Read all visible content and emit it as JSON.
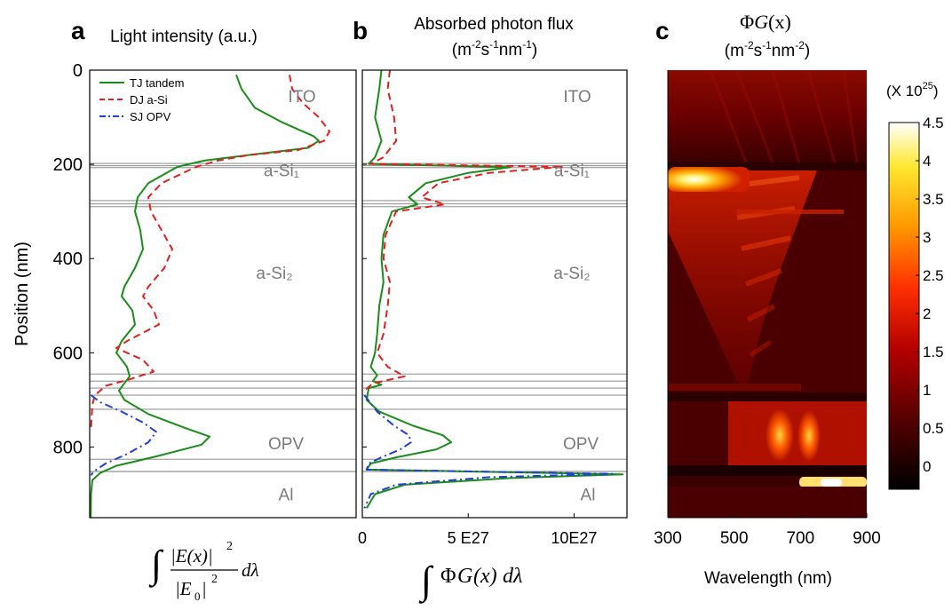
{
  "chart_data": [
    {
      "panel_letter": "a",
      "type": "line",
      "title": "Light intensity (a.u.)",
      "ylabel": "Position (nm)",
      "xlabel_formula": {
        "lead": "∫",
        "numerator": "|E(x)|",
        "num_exp": "2",
        "denominator": "|E",
        "den_sub": "0",
        "den_tail": "|",
        "den_exp": "2",
        "tail": "dλ"
      },
      "ylim": [
        0,
        950
      ],
      "xlim": [
        0,
        1
      ],
      "yticks": [
        "0",
        "200",
        "400",
        "600",
        "800"
      ],
      "y_reversed": true,
      "layer_labels": [
        "ITO",
        "a-Si₁",
        "a-Si₂",
        "OPV",
        "Al"
      ],
      "interfaces": [
        198,
        203,
        207,
        277,
        284,
        290,
        645,
        660,
        675,
        690,
        720,
        826,
        852
      ],
      "legend": [
        "TJ tandem",
        "DJ a-Si",
        "SJ OPV"
      ],
      "series": [
        {
          "name": "TJ tandem",
          "color": "#1a8c1a",
          "dash": "solid",
          "points": [
            [
              0.55,
              10
            ],
            [
              0.57,
              40
            ],
            [
              0.62,
              80
            ],
            [
              0.72,
              110
            ],
            [
              0.84,
              140
            ],
            [
              0.86,
              150
            ],
            [
              0.82,
              165
            ],
            [
              0.6,
              180
            ],
            [
              0.43,
              192
            ],
            [
              0.33,
              205
            ],
            [
              0.22,
              240
            ],
            [
              0.18,
              270
            ],
            [
              0.17,
              300
            ],
            [
              0.19,
              340
            ],
            [
              0.2,
              380
            ],
            [
              0.17,
              420
            ],
            [
              0.13,
              460
            ],
            [
              0.12,
              480
            ],
            [
              0.16,
              510
            ],
            [
              0.17,
              540
            ],
            [
              0.12,
              575
            ],
            [
              0.1,
              600
            ],
            [
              0.14,
              630
            ],
            [
              0.15,
              650
            ],
            [
              0.13,
              665
            ],
            [
              0.11,
              680
            ],
            [
              0.13,
              700
            ],
            [
              0.22,
              730
            ],
            [
              0.36,
              760
            ],
            [
              0.45,
              778
            ],
            [
              0.42,
              795
            ],
            [
              0.25,
              820
            ],
            [
              0.1,
              840
            ],
            [
              0.04,
              855
            ],
            [
              0.01,
              870
            ],
            [
              0.005,
              900
            ],
            [
              0.004,
              950
            ]
          ]
        },
        {
          "name": "DJ a-Si",
          "color": "#e02020",
          "dash": "8,5",
          "points": [
            [
              0.75,
              10
            ],
            [
              0.76,
              40
            ],
            [
              0.8,
              70
            ],
            [
              0.86,
              100
            ],
            [
              0.9,
              130
            ],
            [
              0.88,
              150
            ],
            [
              0.78,
              170
            ],
            [
              0.6,
              180
            ],
            [
              0.48,
              192
            ],
            [
              0.4,
              205
            ],
            [
              0.27,
              240
            ],
            [
              0.22,
              270
            ],
            [
              0.23,
              300
            ],
            [
              0.27,
              340
            ],
            [
              0.31,
              380
            ],
            [
              0.28,
              420
            ],
            [
              0.22,
              460
            ],
            [
              0.2,
              480
            ],
            [
              0.24,
              510
            ],
            [
              0.26,
              540
            ],
            [
              0.14,
              575
            ],
            [
              0.1,
              590
            ],
            [
              0.2,
              615
            ],
            [
              0.24,
              640
            ],
            [
              0.14,
              658
            ],
            [
              0.06,
              670
            ],
            [
              0.02,
              690
            ],
            [
              0.01,
              710
            ],
            [
              0.005,
              760
            ]
          ]
        },
        {
          "name": "SJ OPV",
          "color": "#2040d0",
          "dash": "9,4,2,4",
          "points": [
            [
              0.005,
              690
            ],
            [
              0.04,
              705
            ],
            [
              0.12,
              725
            ],
            [
              0.2,
              748
            ],
            [
              0.25,
              768
            ],
            [
              0.22,
              790
            ],
            [
              0.14,
              815
            ],
            [
              0.06,
              835
            ],
            [
              0.015,
              852
            ],
            [
              0.005,
              860
            ]
          ]
        }
      ]
    },
    {
      "panel_letter": "b",
      "type": "line",
      "title": "Absorbed photon flux",
      "units": {
        "base": "(m",
        "e1": "-2",
        "s": "s",
        "e2": "-1",
        "nm": "nm",
        "e3": "-1",
        "close": ")"
      },
      "xlabel_formula": {
        "lead": "∫",
        "phi": "Φ",
        "g": "G",
        "x": "(x)",
        "tail": "dλ"
      },
      "xlim": [
        0,
        12.5
      ],
      "xticks": [
        "0",
        "5 E27",
        "10E27"
      ],
      "xtick_values": [
        0,
        5,
        10
      ],
      "ylim": [
        0,
        950
      ],
      "y_reversed": true,
      "layer_labels": [
        "ITO",
        "a-Si₁",
        "a-Si₂",
        "OPV",
        "Al"
      ],
      "interfaces": [
        198,
        203,
        207,
        277,
        284,
        290,
        645,
        660,
        675,
        690,
        720,
        826,
        852
      ],
      "series": [
        {
          "name": "TJ tandem",
          "color": "#1a8c1a",
          "dash": "solid",
          "points": [
            [
              0.9,
              0
            ],
            [
              0.8,
              40
            ],
            [
              0.6,
              100
            ],
            [
              0.9,
              150
            ],
            [
              0.6,
              185
            ],
            [
              0.3,
              199
            ],
            [
              7.0,
              206
            ],
            [
              5.0,
              218
            ],
            [
              3.0,
              240
            ],
            [
              2.2,
              270
            ],
            [
              2.6,
              285
            ],
            [
              1.4,
              300
            ],
            [
              1.0,
              350
            ],
            [
              0.9,
              400
            ],
            [
              1.0,
              450
            ],
            [
              0.8,
              500
            ],
            [
              0.7,
              560
            ],
            [
              0.6,
              600
            ],
            [
              0.4,
              630
            ],
            [
              0.7,
              648
            ],
            [
              0.5,
              660
            ],
            [
              0.9,
              668
            ],
            [
              0.3,
              675
            ],
            [
              0.2,
              700
            ],
            [
              0.8,
              725
            ],
            [
              2.4,
              755
            ],
            [
              3.8,
              775
            ],
            [
              4.2,
              790
            ],
            [
              3.5,
              805
            ],
            [
              1.6,
              822
            ],
            [
              0.4,
              835
            ],
            [
              0.2,
              848
            ],
            [
              12.3,
              858
            ],
            [
              7.0,
              866
            ],
            [
              2.0,
              880
            ],
            [
              0.6,
              900
            ],
            [
              0.2,
              930
            ]
          ]
        },
        {
          "name": "DJ a-Si",
          "color": "#e02020",
          "dash": "8,5",
          "points": [
            [
              1.3,
              0
            ],
            [
              1.2,
              40
            ],
            [
              1.5,
              100
            ],
            [
              1.6,
              150
            ],
            [
              1.0,
              185
            ],
            [
              0.4,
              199
            ],
            [
              9.5,
              205
            ],
            [
              6.0,
              218
            ],
            [
              3.6,
              240
            ],
            [
              2.8,
              270
            ],
            [
              3.9,
              285
            ],
            [
              1.6,
              300
            ],
            [
              1.1,
              350
            ],
            [
              1.0,
              400
            ],
            [
              1.3,
              450
            ],
            [
              1.2,
              500
            ],
            [
              1.0,
              560
            ],
            [
              0.7,
              600
            ],
            [
              1.2,
              630
            ],
            [
              2.0,
              650
            ],
            [
              0.5,
              665
            ],
            [
              0.1,
              680
            ]
          ]
        },
        {
          "name": "SJ OPV",
          "color": "#2040d0",
          "dash": "9,4,2,4",
          "points": [
            [
              0.1,
              690
            ],
            [
              0.7,
              725
            ],
            [
              1.5,
              755
            ],
            [
              2.2,
              775
            ],
            [
              2.3,
              790
            ],
            [
              1.8,
              805
            ],
            [
              0.9,
              822
            ],
            [
              0.3,
              835
            ],
            [
              0.2,
              848
            ],
            [
              11.8,
              857
            ],
            [
              6.0,
              864
            ],
            [
              1.6,
              880
            ],
            [
              0.4,
              900
            ],
            [
              0.1,
              930
            ]
          ]
        }
      ]
    },
    {
      "panel_letter": "c",
      "type": "heatmap",
      "title": {
        "phi": "Φ",
        "g": "G",
        "x": "(x)"
      },
      "units": {
        "base": "(m",
        "e1": "-2",
        "s": "s",
        "e2": "-1",
        "nm": "nm",
        "e3": "-2",
        "close": ")"
      },
      "xlabel": "Wavelength (nm)",
      "xlim": [
        300,
        900
      ],
      "xticks": [
        "300",
        "500",
        "700",
        "900"
      ],
      "xtick_values": [
        300,
        500,
        700,
        900
      ],
      "ylim": [
        0,
        950
      ],
      "y_reversed": true,
      "colormap": [
        "#000000",
        "#5a0000",
        "#b40000",
        "#ff3000",
        "#ff9a00",
        "#ffe830",
        "#ffffff"
      ],
      "background_color": "#4a0000",
      "colorbar": {
        "multiplier": {
          "text": "(X 10",
          "exp": "25",
          "close": ")"
        },
        "ticks": [
          "0",
          "0.5",
          "1",
          "1.5",
          "2",
          "2.5",
          "3",
          "3.5",
          "4",
          "4.5"
        ],
        "tick_values": [
          0,
          0.5,
          1,
          1.5,
          2,
          2.5,
          3,
          3.5,
          4,
          4.5
        ],
        "range": [
          -0.3,
          4.5
        ]
      },
      "features": [
        {
          "type": "ITO glow",
          "y": [
            0,
            198
          ],
          "intensity": 0.9
        },
        {
          "type": "hot band",
          "x": [
            300,
            470
          ],
          "y": [
            205,
            230
          ],
          "intensity": 4.5
        },
        {
          "type": "absorption wedge",
          "x": [
            300,
            680
          ],
          "y": [
            205,
            680
          ],
          "intensity": 1.6
        },
        {
          "type": "OPV bands",
          "x": [
            560,
            900
          ],
          "y": [
            700,
            830
          ],
          "intensity": 3.5
        },
        {
          "type": "Al band",
          "x": [
            700,
            900
          ],
          "y": [
            852,
            875
          ],
          "intensity": 4.5
        }
      ]
    }
  ]
}
